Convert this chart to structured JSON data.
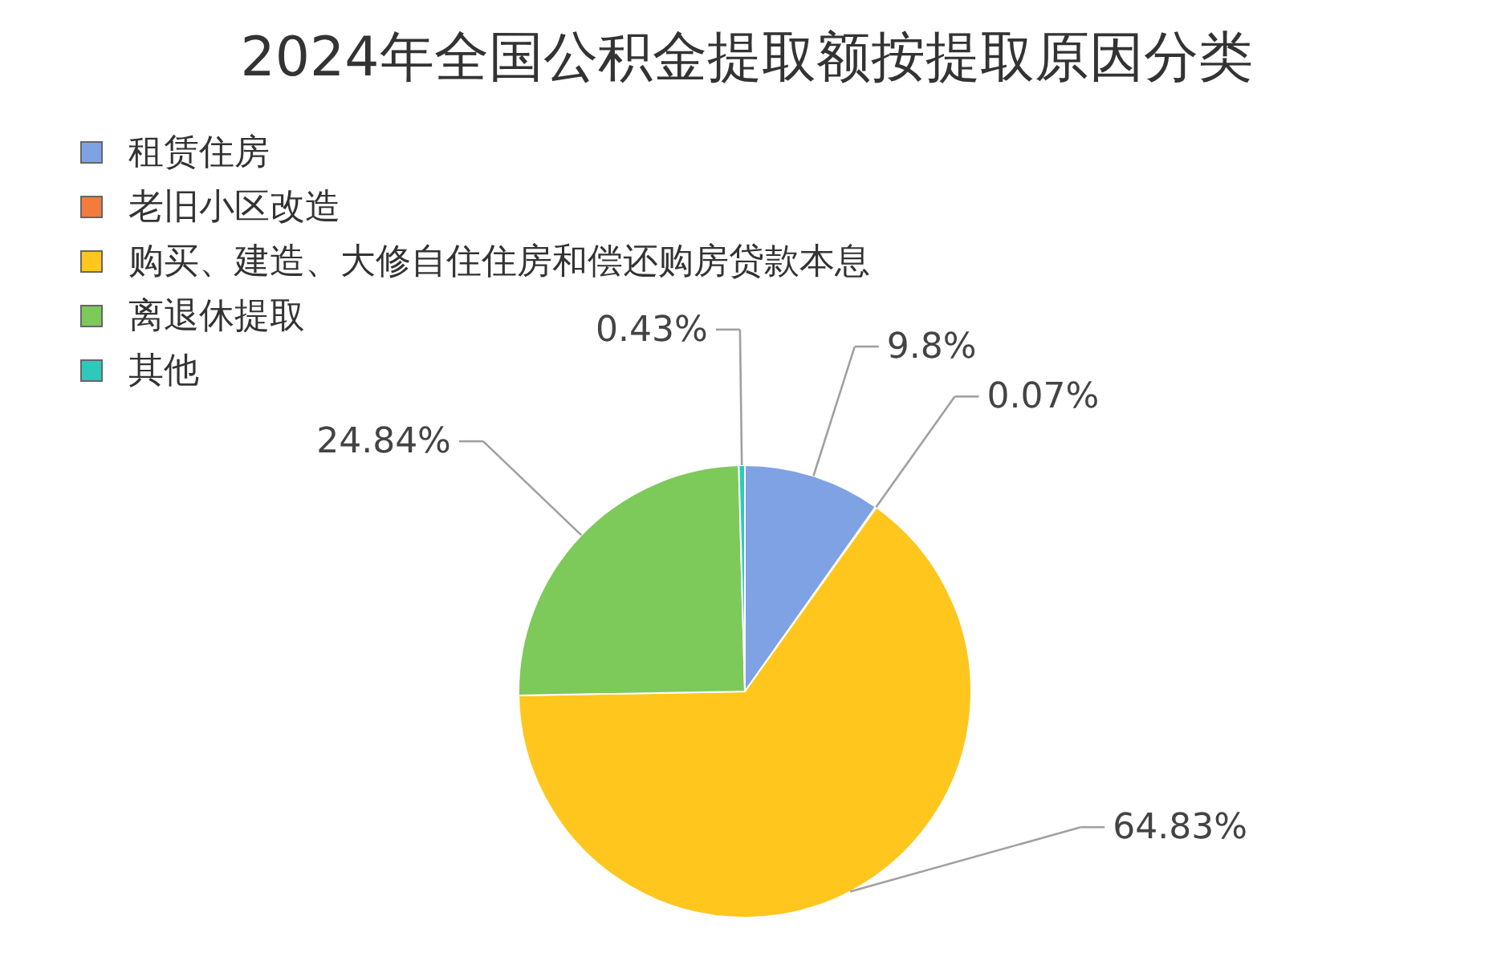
{
  "chart_data": {
    "type": "pie",
    "title": "2024年全国公积金提取额按提取原因分类",
    "categories": [
      "租赁住房",
      "老旧小区改造",
      "购买、建造、大修自住住房和偿还购房贷款本息",
      "离退休提取",
      "其他"
    ],
    "values": [
      9.8,
      0.07,
      64.83,
      24.84,
      0.43
    ],
    "colors": [
      "#7fa2e4",
      "#f37b3b",
      "#ffc61e",
      "#7dc95a",
      "#2fc9bb"
    ],
    "value_labels": [
      "9.8%",
      "0.07%",
      "64.83%",
      "24.84%",
      "0.43%"
    ],
    "legend": "top left"
  }
}
